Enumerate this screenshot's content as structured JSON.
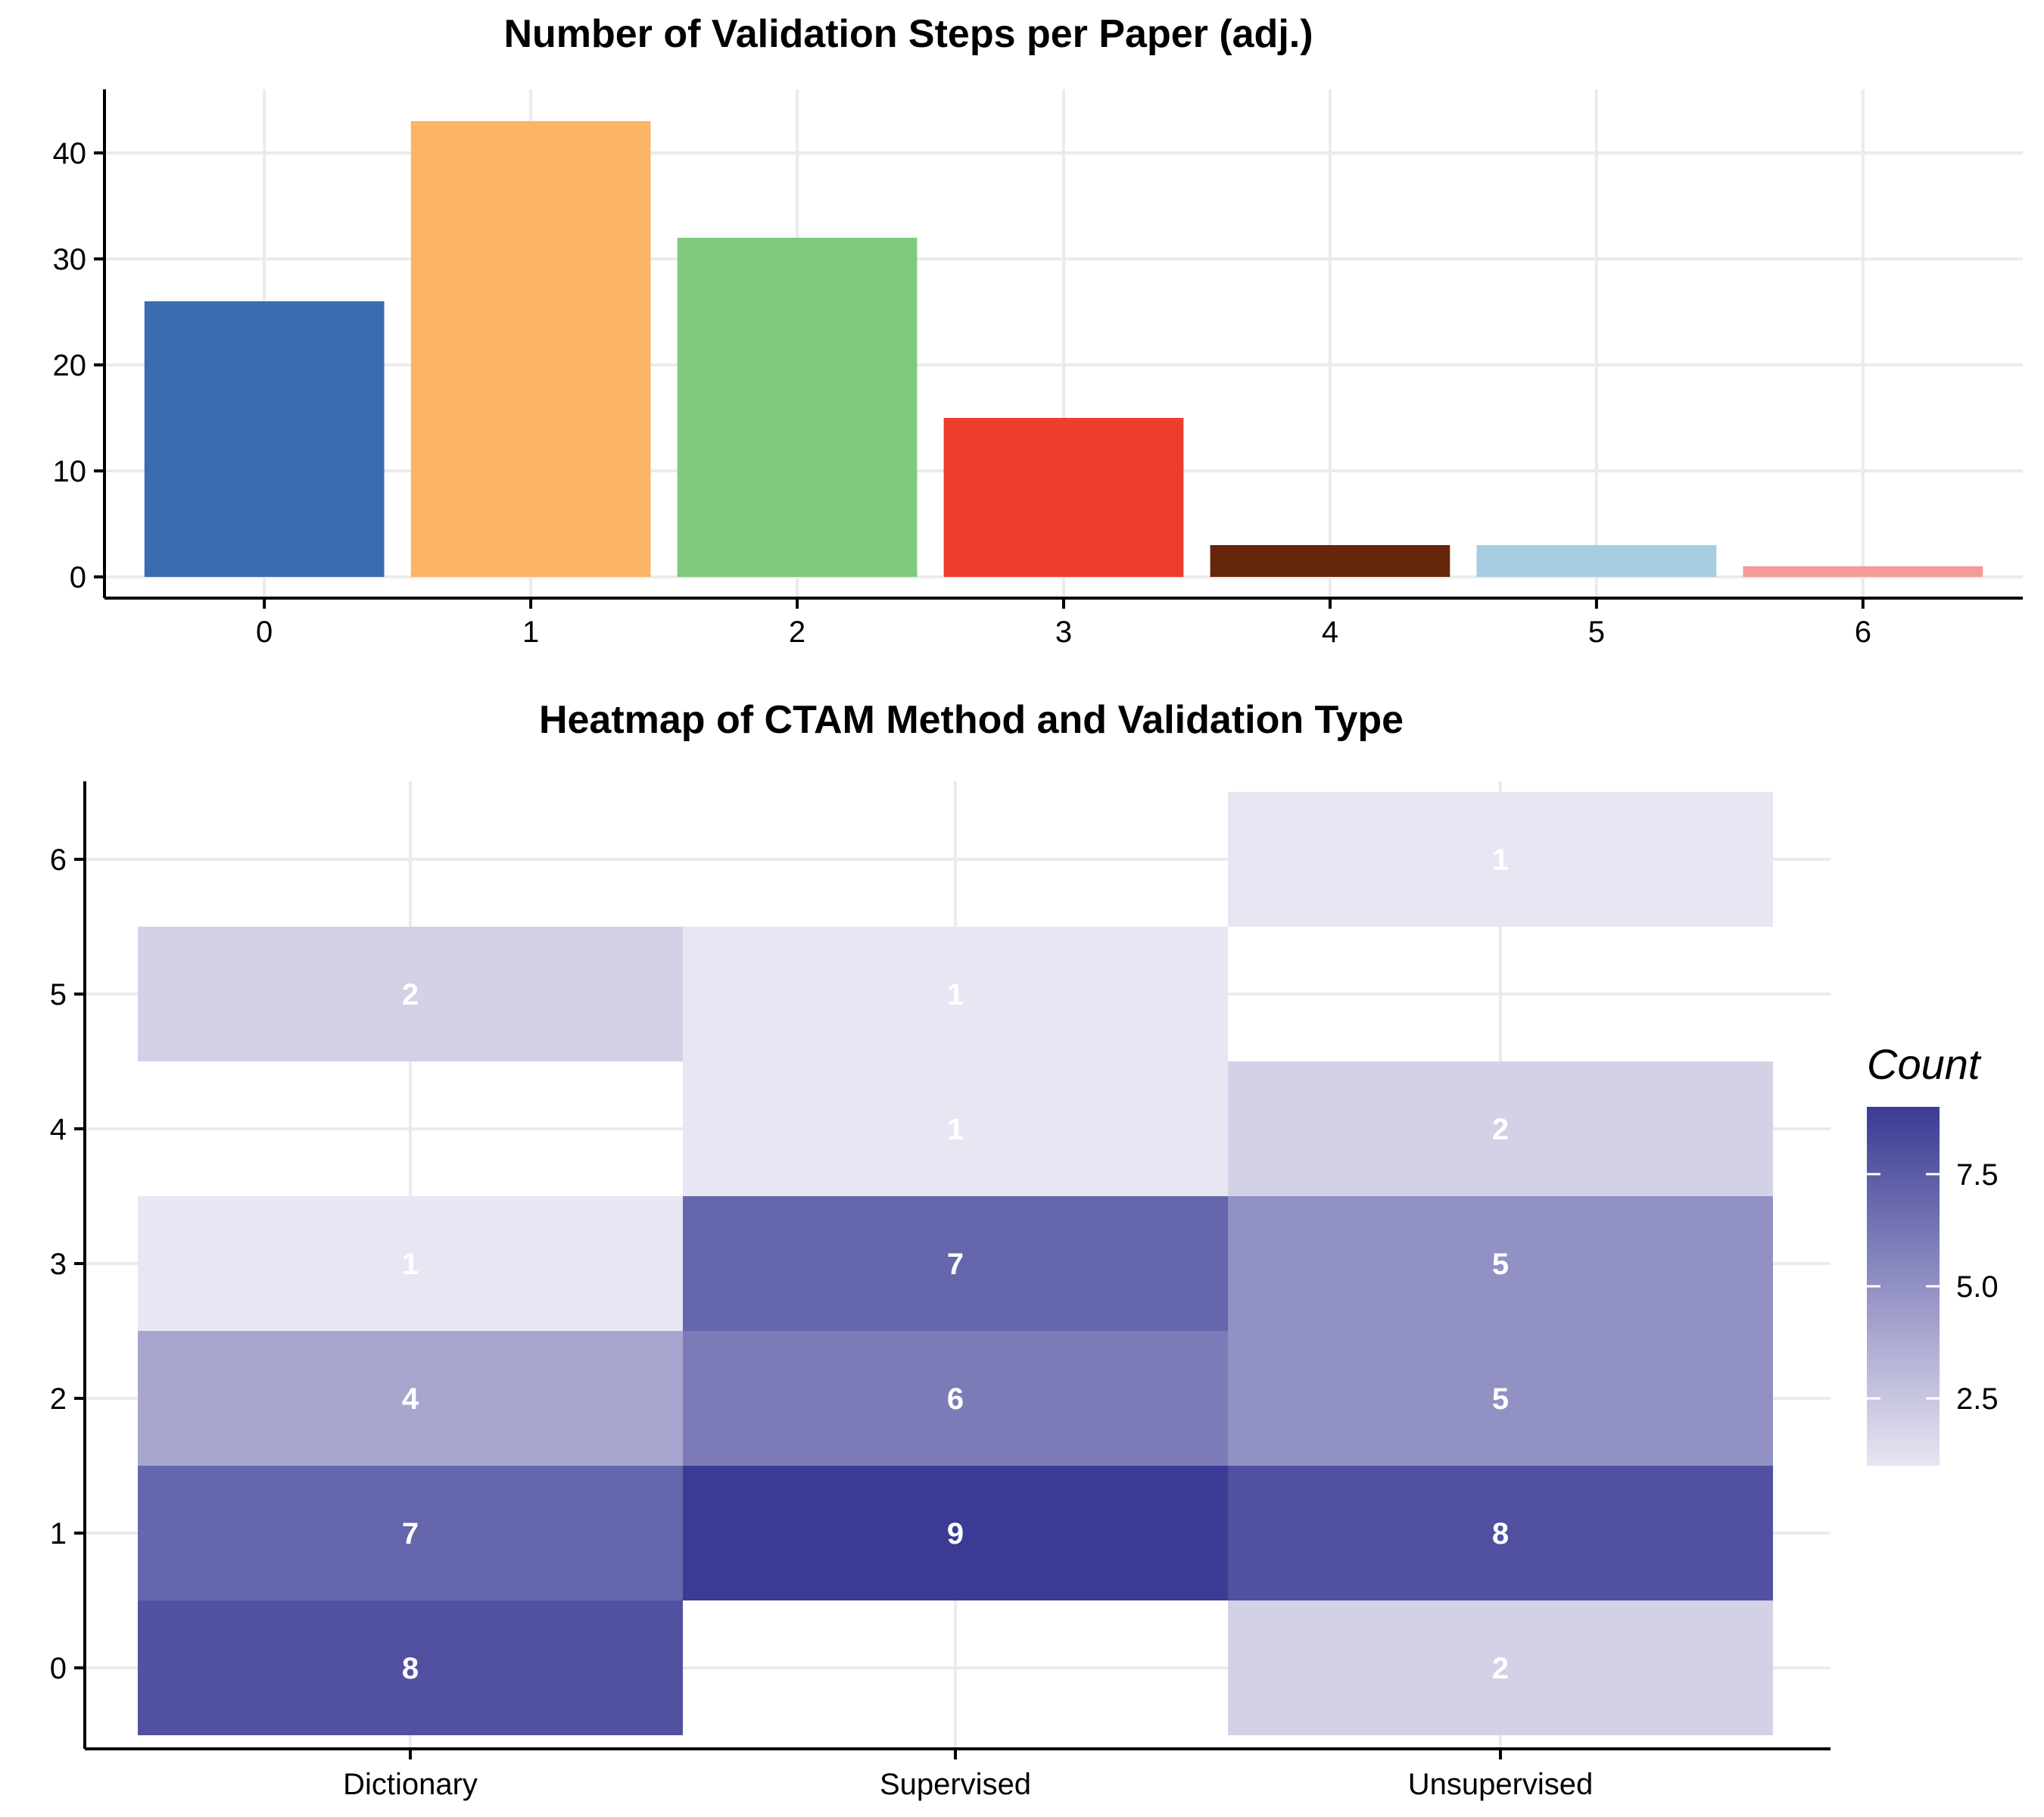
{
  "chart_data": [
    {
      "type": "bar",
      "title": "Number of Validation Steps per Paper (adj.)",
      "xlabel": "",
      "ylabel": "",
      "categories": [
        "0",
        "1",
        "2",
        "3",
        "4",
        "5",
        "6"
      ],
      "values": [
        26,
        43,
        32,
        15,
        3,
        3,
        1
      ],
      "colors": [
        "#3a6caf",
        "#fbb564",
        "#80c97d",
        "#ee3c2e",
        "#66260b",
        "#a6cde2",
        "#f59a9b"
      ],
      "ylim": [
        -2,
        46
      ],
      "yticks": [
        "0",
        "10",
        "20",
        "30",
        "40"
      ],
      "grid": true,
      "legend": "none"
    },
    {
      "type": "heatmap",
      "title": "Heatmap of CTAM Method and Validation Type",
      "xlabel": "",
      "ylabel": "",
      "x_categories": [
        "Dictionary",
        "Supervised",
        "Unsupervised"
      ],
      "y_categories": [
        "0",
        "1",
        "2",
        "3",
        "4",
        "5",
        "6"
      ],
      "cells": [
        {
          "x": "Dictionary",
          "y": "0",
          "value": 8
        },
        {
          "x": "Dictionary",
          "y": "1",
          "value": 7
        },
        {
          "x": "Dictionary",
          "y": "2",
          "value": 4
        },
        {
          "x": "Dictionary",
          "y": "3",
          "value": 1
        },
        {
          "x": "Dictionary",
          "y": "5",
          "value": 2
        },
        {
          "x": "Supervised",
          "y": "1",
          "value": 9
        },
        {
          "x": "Supervised",
          "y": "2",
          "value": 6
        },
        {
          "x": "Supervised",
          "y": "3",
          "value": 7
        },
        {
          "x": "Supervised",
          "y": "4",
          "value": 1
        },
        {
          "x": "Supervised",
          "y": "5",
          "value": 1
        },
        {
          "x": "Unsupervised",
          "y": "0",
          "value": 2
        },
        {
          "x": "Unsupervised",
          "y": "1",
          "value": 8
        },
        {
          "x": "Unsupervised",
          "y": "2",
          "value": 5
        },
        {
          "x": "Unsupervised",
          "y": "3",
          "value": 5
        },
        {
          "x": "Unsupervised",
          "y": "4",
          "value": 2
        },
        {
          "x": "Unsupervised",
          "y": "6",
          "value": 1
        }
      ],
      "grid": true,
      "legend": {
        "title": "Count",
        "placement": "right",
        "range": [
          1,
          9
        ],
        "ticks": [
          "2.5",
          "5.0",
          "7.5"
        ],
        "low_color": "#e8e6f2",
        "high_color": "#3b3b95"
      }
    }
  ]
}
